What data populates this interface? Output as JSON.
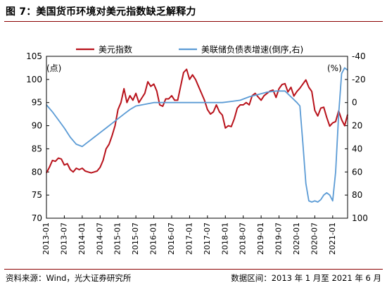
{
  "header": {
    "title": "图 7：美国货币环境对美元指数缺乏解释力"
  },
  "footer": {
    "source": "资料来源：Wind，光大证券研究所",
    "range": "数据区间：2013 年 1 月至 2021 年 6 月"
  },
  "chart_data": {
    "type": "line",
    "left_unit": "(点)",
    "right_unit": "(%)",
    "left_axis": {
      "min": 70,
      "max": 105,
      "ticks": [
        70,
        75,
        80,
        85,
        90,
        95,
        100,
        105
      ]
    },
    "right_axis": {
      "min": -40,
      "max": 100,
      "inverted": true,
      "ticks": [
        -40,
        -20,
        0,
        20,
        40,
        60,
        80,
        100
      ]
    },
    "x_ticks": [
      "2013-01",
      "2013-07",
      "2014-01",
      "2014-07",
      "2015-01",
      "2015-07",
      "2016-01",
      "2016-07",
      "2017-01",
      "2017-07",
      "2018-01",
      "2018-07",
      "2019-01",
      "2019-07",
      "2020-01",
      "2020-07",
      "2021-01"
    ],
    "legend": {
      "placement": "top"
    },
    "series": [
      {
        "name": "美元指数",
        "axis": "left",
        "color": "#b8121b",
        "points": [
          [
            "2013-01",
            79.8
          ],
          [
            "2013-02",
            81.0
          ],
          [
            "2013-03",
            82.5
          ],
          [
            "2013-04",
            82.3
          ],
          [
            "2013-05",
            83.0
          ],
          [
            "2013-06",
            82.8
          ],
          [
            "2013-07",
            81.5
          ],
          [
            "2013-08",
            81.8
          ],
          [
            "2013-09",
            80.5
          ],
          [
            "2013-10",
            80.0
          ],
          [
            "2013-11",
            80.8
          ],
          [
            "2013-12",
            80.5
          ],
          [
            "2014-01",
            80.8
          ],
          [
            "2014-02",
            80.2
          ],
          [
            "2014-03",
            80.0
          ],
          [
            "2014-04",
            79.8
          ],
          [
            "2014-05",
            80.0
          ],
          [
            "2014-06",
            80.2
          ],
          [
            "2014-07",
            81.0
          ],
          [
            "2014-08",
            82.5
          ],
          [
            "2014-09",
            85.0
          ],
          [
            "2014-10",
            86.0
          ],
          [
            "2014-11",
            87.8
          ],
          [
            "2014-12",
            90.0
          ],
          [
            "2015-01",
            93.5
          ],
          [
            "2015-02",
            95.0
          ],
          [
            "2015-03",
            98.0
          ],
          [
            "2015-04",
            95.0
          ],
          [
            "2015-05",
            96.5
          ],
          [
            "2015-06",
            95.5
          ],
          [
            "2015-07",
            97.0
          ],
          [
            "2015-08",
            95.0
          ],
          [
            "2015-09",
            96.0
          ],
          [
            "2015-10",
            97.0
          ],
          [
            "2015-11",
            99.5
          ],
          [
            "2015-12",
            98.5
          ],
          [
            "2016-01",
            99.0
          ],
          [
            "2016-02",
            97.5
          ],
          [
            "2016-03",
            94.5
          ],
          [
            "2016-04",
            94.2
          ],
          [
            "2016-05",
            95.8
          ],
          [
            "2016-06",
            95.8
          ],
          [
            "2016-07",
            96.5
          ],
          [
            "2016-08",
            95.5
          ],
          [
            "2016-09",
            95.5
          ],
          [
            "2016-10",
            98.5
          ],
          [
            "2016-11",
            101.5
          ],
          [
            "2016-12",
            102.2
          ],
          [
            "2017-01",
            100.0
          ],
          [
            "2017-02",
            101.0
          ],
          [
            "2017-03",
            100.0
          ],
          [
            "2017-04",
            98.5
          ],
          [
            "2017-05",
            97.0
          ],
          [
            "2017-06",
            95.5
          ],
          [
            "2017-07",
            93.5
          ],
          [
            "2017-08",
            92.5
          ],
          [
            "2017-09",
            93.0
          ],
          [
            "2017-10",
            94.5
          ],
          [
            "2017-11",
            93.0
          ],
          [
            "2017-12",
            92.3
          ],
          [
            "2018-01",
            89.5
          ],
          [
            "2018-02",
            90.0
          ],
          [
            "2018-03",
            89.8
          ],
          [
            "2018-04",
            91.5
          ],
          [
            "2018-05",
            93.8
          ],
          [
            "2018-06",
            94.5
          ],
          [
            "2018-07",
            94.5
          ],
          [
            "2018-08",
            95.0
          ],
          [
            "2018-09",
            94.5
          ],
          [
            "2018-10",
            96.5
          ],
          [
            "2018-11",
            97.0
          ],
          [
            "2018-12",
            96.2
          ],
          [
            "2019-01",
            95.5
          ],
          [
            "2019-02",
            96.5
          ],
          [
            "2019-03",
            97.0
          ],
          [
            "2019-04",
            97.5
          ],
          [
            "2019-05",
            97.7
          ],
          [
            "2019-06",
            96.1
          ],
          [
            "2019-07",
            98.0
          ],
          [
            "2019-08",
            98.9
          ],
          [
            "2019-09",
            99.1
          ],
          [
            "2019-10",
            97.3
          ],
          [
            "2019-11",
            98.3
          ],
          [
            "2019-12",
            96.4
          ],
          [
            "2020-01",
            97.4
          ],
          [
            "2020-02",
            98.1
          ],
          [
            "2020-03",
            99.0
          ],
          [
            "2020-04",
            99.9
          ],
          [
            "2020-05",
            98.3
          ],
          [
            "2020-06",
            97.4
          ],
          [
            "2020-07",
            93.3
          ],
          [
            "2020-08",
            92.1
          ],
          [
            "2020-09",
            93.8
          ],
          [
            "2020-10",
            94.0
          ],
          [
            "2020-11",
            91.8
          ],
          [
            "2020-12",
            89.9
          ],
          [
            "2021-01",
            90.6
          ],
          [
            "2021-02",
            90.9
          ],
          [
            "2021-03",
            93.2
          ],
          [
            "2021-04",
            91.3
          ],
          [
            "2021-05",
            90.0
          ],
          [
            "2021-06",
            92.4
          ]
        ]
      },
      {
        "name": "美联储负债表增速(倒序,右)",
        "axis": "right",
        "color": "#5b9bd5",
        "points": [
          [
            "2013-01",
            2
          ],
          [
            "2013-03",
            8
          ],
          [
            "2013-05",
            15
          ],
          [
            "2013-07",
            22
          ],
          [
            "2013-09",
            30
          ],
          [
            "2013-11",
            36
          ],
          [
            "2014-01",
            38
          ],
          [
            "2014-03",
            34
          ],
          [
            "2014-05",
            30
          ],
          [
            "2014-07",
            26
          ],
          [
            "2014-09",
            22
          ],
          [
            "2014-11",
            18
          ],
          [
            "2015-01",
            14
          ],
          [
            "2015-03",
            10
          ],
          [
            "2015-05",
            6
          ],
          [
            "2015-07",
            3
          ],
          [
            "2015-09",
            2
          ],
          [
            "2015-11",
            1
          ],
          [
            "2016-01",
            0
          ],
          [
            "2016-03",
            0
          ],
          [
            "2016-06",
            0
          ],
          [
            "2016-09",
            0
          ],
          [
            "2016-12",
            0
          ],
          [
            "2017-03",
            0
          ],
          [
            "2017-06",
            0
          ],
          [
            "2017-09",
            0
          ],
          [
            "2017-12",
            0
          ],
          [
            "2018-03",
            -1
          ],
          [
            "2018-06",
            -2
          ],
          [
            "2018-09",
            -5
          ],
          [
            "2018-12",
            -7
          ],
          [
            "2019-03",
            -9
          ],
          [
            "2019-06",
            -10
          ],
          [
            "2019-09",
            -10
          ],
          [
            "2019-11",
            -5
          ],
          [
            "2020-01",
            0
          ],
          [
            "2020-02",
            3
          ],
          [
            "2020-03",
            35
          ],
          [
            "2020-04",
            70
          ],
          [
            "2020-05",
            85
          ],
          [
            "2020-06",
            86
          ],
          [
            "2020-07",
            85
          ],
          [
            "2020-08",
            86
          ],
          [
            "2020-09",
            84
          ],
          [
            "2020-10",
            80
          ],
          [
            "2020-11",
            78
          ],
          [
            "2020-12",
            80
          ],
          [
            "2021-01",
            85
          ],
          [
            "2021-02",
            60
          ],
          [
            "2021-03",
            10
          ],
          [
            "2021-04",
            -25
          ],
          [
            "2021-05",
            -30
          ],
          [
            "2021-06",
            -28
          ]
        ]
      }
    ]
  }
}
